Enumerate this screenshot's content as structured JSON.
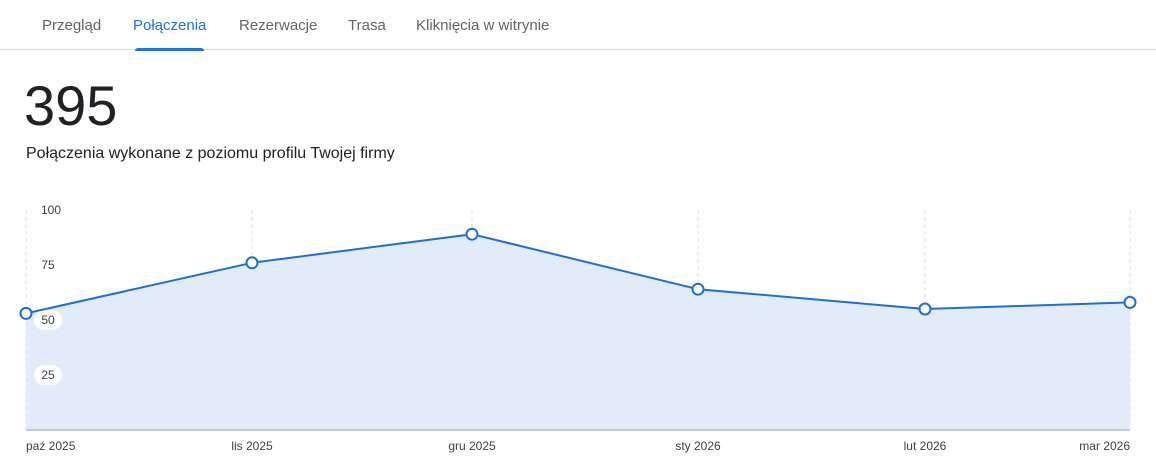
{
  "tabs": [
    {
      "label": "Przegląd",
      "active": false
    },
    {
      "label": "Połączenia",
      "active": true
    },
    {
      "label": "Rezerwacje",
      "active": false
    },
    {
      "label": "Trasa",
      "active": false
    },
    {
      "label": "Kliknięcia w witrynie",
      "active": false
    }
  ],
  "summary": {
    "total": "395",
    "caption": "Połączenia wykonane z poziomu profilu Twojej firmy"
  },
  "colors": {
    "accent": "#1a73e8",
    "line": "#1f6fd1",
    "area": "#e1ebfa",
    "grid": "#dadce0"
  },
  "chart_data": {
    "type": "area",
    "categories": [
      "paź 2025",
      "lis 2025",
      "gru 2025",
      "sty 2026",
      "lut 2026",
      "mar 2026"
    ],
    "series": [
      {
        "values": [
          53,
          76,
          89,
          64,
          55,
          58
        ]
      }
    ],
    "yticks": [
      "25",
      "50",
      "75",
      "100"
    ],
    "ylim": [
      0,
      100
    ],
    "grid": "vertical dashed",
    "legend": "none"
  }
}
